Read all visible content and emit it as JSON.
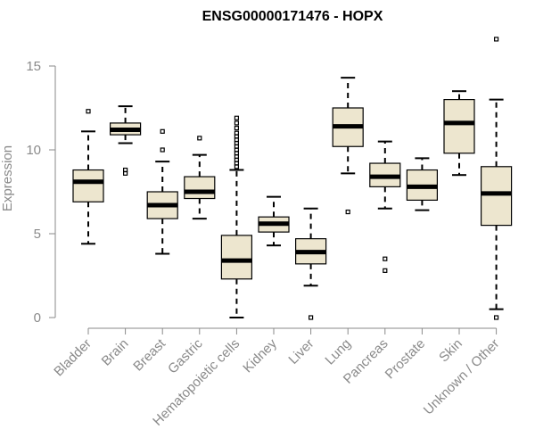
{
  "chart_data": {
    "type": "boxplot",
    "title": "ENSG00000171476 - HOPX",
    "xlabel": "",
    "ylabel": "Expression",
    "ylim": [
      0,
      17
    ],
    "yticks": [
      0,
      5,
      10,
      15
    ],
    "colors": {
      "box_fill": "#ede6cf",
      "box_stroke": "#000000",
      "axis": "#8a8a8a"
    },
    "categories": [
      "Bladder",
      "Brain",
      "Breast",
      "Gastric",
      "Hematopoietic cells",
      "Kidney",
      "Liver",
      "Lung",
      "Pancreas",
      "Prostate",
      "Skin",
      "Unknown / Other"
    ],
    "boxes": [
      {
        "name": "Bladder",
        "whisker_low": 4.4,
        "q1": 6.9,
        "median": 8.1,
        "q3": 8.8,
        "whisker_high": 11.1,
        "outliers": [
          12.3
        ]
      },
      {
        "name": "Brain",
        "whisker_low": 10.4,
        "q1": 10.9,
        "median": 11.2,
        "q3": 11.6,
        "whisker_high": 12.6,
        "outliers": [
          8.6,
          8.8
        ]
      },
      {
        "name": "Breast",
        "whisker_low": 3.8,
        "q1": 5.9,
        "median": 6.7,
        "q3": 7.5,
        "whisker_high": 9.3,
        "outliers": [
          10.0,
          11.1
        ]
      },
      {
        "name": "Gastric",
        "whisker_low": 5.9,
        "q1": 7.1,
        "median": 7.5,
        "q3": 8.4,
        "whisker_high": 9.7,
        "outliers": [
          10.7
        ]
      },
      {
        "name": "Hematopoietic cells",
        "whisker_low": 0.0,
        "q1": 2.3,
        "median": 3.4,
        "q3": 4.9,
        "whisker_high": 8.8,
        "outliers": [
          9.0,
          9.2,
          9.4,
          9.6,
          9.8,
          10.0,
          10.2,
          10.4,
          10.6,
          10.8,
          11.0,
          11.3,
          11.6,
          11.9
        ]
      },
      {
        "name": "Kidney",
        "whisker_low": 4.3,
        "q1": 5.1,
        "median": 5.6,
        "q3": 6.0,
        "whisker_high": 7.2,
        "outliers": []
      },
      {
        "name": "Liver",
        "whisker_low": 1.9,
        "q1": 3.2,
        "median": 3.9,
        "q3": 4.7,
        "whisker_high": 6.5,
        "outliers": [
          0.0
        ]
      },
      {
        "name": "Lung",
        "whisker_low": 8.6,
        "q1": 10.2,
        "median": 11.4,
        "q3": 12.5,
        "whisker_high": 14.3,
        "outliers": [
          6.3
        ]
      },
      {
        "name": "Pancreas",
        "whisker_low": 6.5,
        "q1": 7.8,
        "median": 8.4,
        "q3": 9.2,
        "whisker_high": 10.5,
        "outliers": [
          2.8,
          3.5
        ]
      },
      {
        "name": "Prostate",
        "whisker_low": 6.4,
        "q1": 7.0,
        "median": 7.8,
        "q3": 8.8,
        "whisker_high": 9.5,
        "outliers": []
      },
      {
        "name": "Skin",
        "whisker_low": 8.5,
        "q1": 9.8,
        "median": 11.6,
        "q3": 13.0,
        "whisker_high": 13.5,
        "outliers": []
      },
      {
        "name": "Unknown / Other",
        "whisker_low": 0.5,
        "q1": 5.5,
        "median": 7.4,
        "q3": 9.0,
        "whisker_high": 13.0,
        "outliers": [
          0.0,
          16.6
        ]
      }
    ]
  }
}
